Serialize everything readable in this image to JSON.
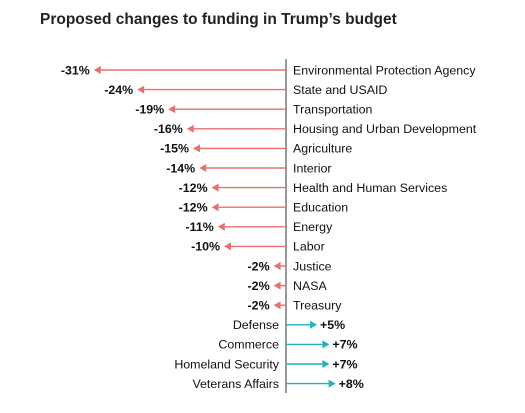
{
  "chart_data": {
    "type": "bar",
    "title": "Proposed changes to funding in Trump’s budget",
    "xlabel": "",
    "ylabel": "",
    "unit": "%",
    "grid": false,
    "legend": "none",
    "categories": [
      "Environmental Protection Agency",
      "State and USAID",
      "Transportation",
      "Housing and Urban Development",
      "Agriculture",
      "Interior",
      "Health and Human Services",
      "Education",
      "Energy",
      "Labor",
      "Justice",
      "NASA",
      "Treasury",
      "Defense",
      "Commerce",
      "Homeland Security",
      "Veterans Affairs"
    ],
    "values": [
      -31,
      -24,
      -19,
      -16,
      -15,
      -14,
      -12,
      -12,
      -11,
      -10,
      -2,
      -2,
      -2,
      5,
      7,
      7,
      8
    ],
    "value_labels": [
      "-31%",
      "-24%",
      "-19%",
      "-16%",
      "-15%",
      "-14%",
      "-12%",
      "-12%",
      "-11%",
      "-10%",
      "-2%",
      "-2%",
      "-2%",
      "+5%",
      "+7%",
      "+7%",
      "+8%"
    ],
    "colors": {
      "negative": "#e8706e",
      "positive": "#23b2bd",
      "axis": "#333333",
      "text": "#111111",
      "title": "#222222"
    }
  }
}
